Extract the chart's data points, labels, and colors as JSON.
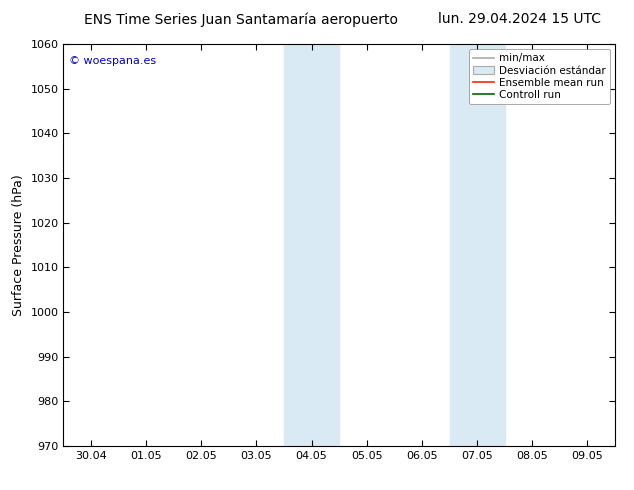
{
  "title_left": "ENS Time Series Juan Santamaría aeropuerto",
  "title_right": "lun. 29.04.2024 15 UTC",
  "ylabel": "Surface Pressure (hPa)",
  "ylim": [
    970,
    1060
  ],
  "yticks": [
    970,
    980,
    990,
    1000,
    1010,
    1020,
    1030,
    1040,
    1050,
    1060
  ],
  "xtick_labels": [
    "30.04",
    "01.05",
    "02.05",
    "03.05",
    "04.05",
    "05.05",
    "06.05",
    "07.05",
    "08.05",
    "09.05"
  ],
  "shaded_bands": [
    {
      "xmin": 4.0,
      "xmax": 5.0,
      "color": "#daeaf5"
    },
    {
      "xmin": 7.0,
      "xmax": 8.0,
      "color": "#daeaf5"
    }
  ],
  "watermark": "© woespana.es",
  "watermark_color": "#0000cc",
  "legend_line1_label": "min/max",
  "legend_line1_color": "#aaaaaa",
  "legend_patch_label": "Desviación estándar",
  "legend_line2_label": "Ensemble mean run",
  "legend_line2_color": "#ff2200",
  "legend_line3_label": "Controll run",
  "legend_line3_color": "#006600",
  "bg_color": "#ffffff",
  "title_fontsize": 10,
  "tick_fontsize": 8,
  "ylabel_fontsize": 9,
  "legend_fontsize": 7.5
}
